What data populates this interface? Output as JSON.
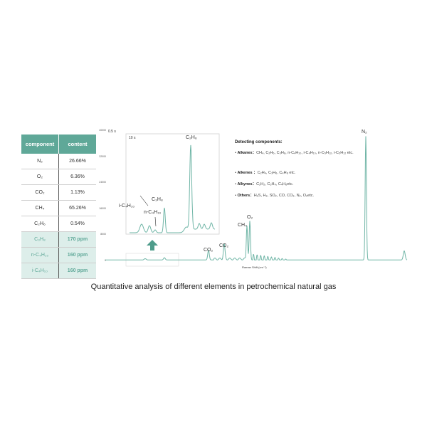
{
  "table": {
    "headers": [
      "component",
      "content"
    ],
    "rows": [
      {
        "component": "N₂",
        "content": "26.66%",
        "highlight": false
      },
      {
        "component": "O₂",
        "content": "6.36%",
        "highlight": false
      },
      {
        "component": "CO₂",
        "content": "1.13%",
        "highlight": false
      },
      {
        "component": "CH₄",
        "content": "65.26%",
        "highlight": false
      },
      {
        "component": "C₂H₆",
        "content": "0.54%",
        "highlight": false
      },
      {
        "component": "C₃H₈",
        "content": "170 ppm",
        "highlight": true
      },
      {
        "component": "n-C₄H₁₀",
        "content": "160 ppm",
        "highlight": true
      },
      {
        "component": "i-C₄H₁₀",
        "content": "160 ppm",
        "highlight": true
      }
    ]
  },
  "chart_data": {
    "type": "line",
    "exposure_label": "0.5 s",
    "xlabel": "Raman Shift (cm⁻¹)",
    "yticks": [
      "40000",
      "32000",
      "24000",
      "16000",
      "8000",
      "0"
    ],
    "ylim": [
      0,
      40000
    ],
    "grid": false,
    "line_color": "#6fb5a6",
    "peaks": [
      {
        "label": "CO₂",
        "intensity": 3000
      },
      {
        "label": "CO₂",
        "intensity": 4500
      },
      {
        "label": "CH₄",
        "intensity": 10500
      },
      {
        "label": "O₂",
        "intensity": 12000
      },
      {
        "label": "N₂",
        "intensity": 38000
      }
    ],
    "inset": {
      "exposure_label": "10 s",
      "peaks": [
        {
          "label": "i-C₄H₁₀"
        },
        {
          "label": "n-C₄H₁₀"
        },
        {
          "label": "C₃H₈"
        },
        {
          "label": "C₂H₆"
        }
      ]
    }
  },
  "detecting": {
    "title": "Detecting components:",
    "items": [
      {
        "name": "Alkanes：",
        "text": "CH₄, C₂H₆, C₃H₈, n-C₄H₁₀, i-C₄H₁₀, n-C₅H₁₂, i-C₅H₁₂ etc."
      },
      {
        "name": "Alkenes ：",
        "text": "C₂H₄, C₃H₆, C₄H₈ etc."
      },
      {
        "name": "Alkynes：",
        "text": "C₂H₂, C₃H₄,  C₄H₆etc."
      },
      {
        "name": "Others：",
        "text": "H₂S, H₂, SO₂, CO, CO₂, N₂, O₂etc."
      }
    ]
  },
  "caption": "Quantitative analysis of different elements in petrochemical natural gas"
}
